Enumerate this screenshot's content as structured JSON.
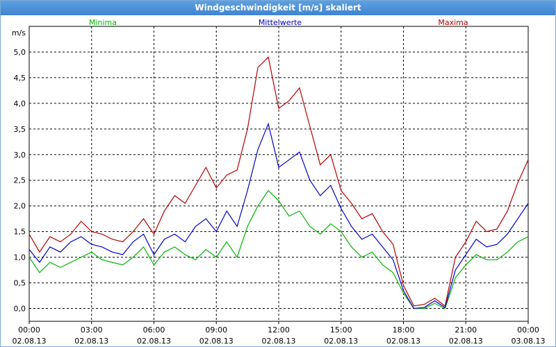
{
  "window": {
    "title": "Windgeschwindigkeit [m/s] skaliert"
  },
  "colors": {
    "min": "#00b400",
    "mean": "#0000c8",
    "max": "#b40000",
    "grid": "#000000",
    "titlebar": "#4a8fd6"
  },
  "chart_data": {
    "type": "line",
    "title": "Windgeschwindigkeit [m/s] skaliert",
    "ylabel": "m/s",
    "xlabel": "",
    "ylim": [
      -0.25,
      5.5
    ],
    "yticks": [
      "0,0",
      "0,5",
      "1,0",
      "1,5",
      "2,0",
      "2,5",
      "3,0",
      "3,5",
      "4,0",
      "4,5",
      "5,0"
    ],
    "xticks": [
      {
        "time": "00:00",
        "date": "02.08.13"
      },
      {
        "time": "03:00",
        "date": "02.08.13"
      },
      {
        "time": "06:00",
        "date": "02.08.13"
      },
      {
        "time": "09:00",
        "date": "02.08.13"
      },
      {
        "time": "12:00",
        "date": "02.08.13"
      },
      {
        "time": "15:00",
        "date": "02.08.13"
      },
      {
        "time": "18:00",
        "date": "02.08.13"
      },
      {
        "time": "21:00",
        "date": "02.08.13"
      },
      {
        "time": "00:00",
        "date": "03.08.13"
      }
    ],
    "x_hours": [
      0,
      0.5,
      1,
      1.5,
      2,
      2.5,
      3,
      3.5,
      4,
      4.5,
      5,
      5.5,
      6,
      6.5,
      7,
      7.5,
      8,
      8.5,
      9,
      9.5,
      10,
      10.5,
      11,
      11.5,
      12,
      12.5,
      13,
      13.5,
      14,
      14.5,
      15,
      15.5,
      16,
      16.5,
      17,
      17.5,
      18,
      18.5,
      19,
      19.5,
      20,
      20.5,
      21,
      21.5,
      22,
      22.5,
      23,
      23.5,
      24
    ],
    "grid": true,
    "legend_position": "top",
    "series": [
      {
        "name": "Minima",
        "values": [
          1.0,
          0.7,
          0.9,
          0.8,
          0.9,
          1.0,
          1.1,
          0.95,
          0.9,
          0.85,
          1.0,
          1.2,
          0.85,
          1.1,
          1.2,
          1.05,
          0.95,
          1.15,
          1.0,
          1.3,
          1.0,
          1.6,
          2.0,
          2.3,
          2.1,
          1.8,
          1.9,
          1.6,
          1.45,
          1.65,
          1.5,
          1.2,
          1.0,
          1.1,
          0.85,
          0.7,
          0.3,
          0.0,
          0.0,
          0.1,
          0.0,
          0.6,
          0.85,
          1.05,
          0.95,
          0.95,
          1.1,
          1.3,
          1.4
        ]
      },
      {
        "name": "Mittelwerte",
        "values": [
          1.15,
          0.9,
          1.2,
          1.1,
          1.3,
          1.4,
          1.25,
          1.2,
          1.1,
          1.05,
          1.3,
          1.45,
          1.05,
          1.35,
          1.45,
          1.3,
          1.6,
          1.75,
          1.5,
          1.9,
          1.6,
          2.3,
          3.1,
          3.6,
          2.75,
          2.9,
          3.05,
          2.5,
          2.2,
          2.4,
          1.95,
          1.6,
          1.35,
          1.45,
          1.2,
          0.95,
          0.35,
          0.0,
          0.02,
          0.15,
          0.02,
          0.75,
          1.05,
          1.35,
          1.2,
          1.25,
          1.45,
          1.75,
          2.05
        ]
      },
      {
        "name": "Maxima",
        "values": [
          1.45,
          1.1,
          1.4,
          1.3,
          1.45,
          1.7,
          1.5,
          1.45,
          1.35,
          1.3,
          1.5,
          1.75,
          1.45,
          1.9,
          2.2,
          2.05,
          2.4,
          2.75,
          2.35,
          2.6,
          2.7,
          3.5,
          4.7,
          4.9,
          3.9,
          4.05,
          4.3,
          3.55,
          2.8,
          3.0,
          2.3,
          2.05,
          1.75,
          1.85,
          1.5,
          1.25,
          0.45,
          0.05,
          0.08,
          0.2,
          0.05,
          1.0,
          1.3,
          1.7,
          1.5,
          1.55,
          1.9,
          2.45,
          2.9
        ]
      }
    ]
  }
}
